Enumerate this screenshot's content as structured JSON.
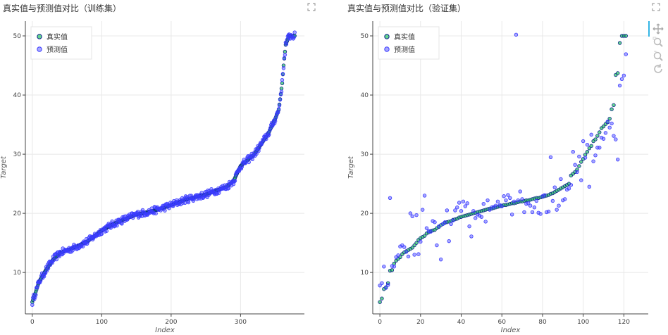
{
  "colors": {
    "actual": "#22c55e",
    "predicted": "#3b3bff",
    "outline": "#0b1f8a",
    "grid": "#e8e8e8",
    "accent": "#33b5e5"
  },
  "icons": {
    "expand": "expand-icon",
    "pan": "pan-icon",
    "box_zoom": "box-zoom-icon",
    "wheel_zoom": "wheel-zoom-icon",
    "reset": "reset-icon"
  },
  "chart_data": [
    {
      "type": "scatter",
      "title": "真实值与预测值对比（训练集）",
      "xlabel": "Index",
      "ylabel": "Target",
      "xlim": [
        -10,
        392
      ],
      "ylim": [
        3,
        52.5
      ],
      "x_ticks": [
        "0",
        "100",
        "200",
        "300"
      ],
      "y_ticks": [
        "10",
        "20",
        "30",
        "40",
        "50"
      ],
      "legend": {
        "position": "top-left",
        "entries": [
          "真实值",
          "预测值"
        ]
      },
      "grid": true,
      "n_points": 379,
      "curve_knots": {
        "x": [
          0,
          10,
          20,
          30,
          40,
          60,
          80,
          100,
          120,
          150,
          180,
          200,
          220,
          250,
          280,
          290,
          300,
          320,
          340,
          350,
          355,
          360,
          362,
          365,
          370,
          375,
          378
        ],
        "y": [
          5,
          8.5,
          10.5,
          12.2,
          13.3,
          14.2,
          15.3,
          17.1,
          18.4,
          19.8,
          20.6,
          21.4,
          22.3,
          23.2,
          24.5,
          25.5,
          28,
          30,
          33.5,
          36,
          37.5,
          42,
          45,
          48.5,
          50,
          50,
          50
        ]
      },
      "series": [
        {
          "name": "真实值",
          "color": "#22c55e"
        },
        {
          "name": "预测值",
          "color": "#3b3bff"
        }
      ]
    },
    {
      "type": "scatter",
      "title": "真实值与预测值对比（验证集）",
      "xlabel": "Index",
      "ylabel": "Target",
      "xlim": [
        -3.5,
        132
      ],
      "ylim": [
        3,
        52.5
      ],
      "x_ticks": [
        "0",
        "20",
        "40",
        "60",
        "80",
        "100",
        "120"
      ],
      "y_ticks": [
        "10",
        "20",
        "30",
        "40",
        "50"
      ],
      "legend": {
        "position": "top-left",
        "entries": [
          "真实值",
          "预测值"
        ]
      },
      "grid": true,
      "series": [
        {
          "name": "真实值",
          "color": "#22c55e",
          "values": [
            5,
            5.6,
            7.2,
            7.5,
            8.2,
            10.3,
            10.4,
            11.5,
            12,
            12.3,
            12.6,
            13.1,
            13.4,
            13.6,
            13.8,
            14,
            14.2,
            14.6,
            15,
            15.5,
            15.8,
            16,
            16.2,
            16.6,
            16.8,
            17,
            17.1,
            17.2,
            17.5,
            17.7,
            18,
            18.2,
            18.4,
            18.5,
            18.6,
            18.7,
            18.9,
            19,
            19.1,
            19.3,
            19.4,
            19.5,
            19.6,
            19.7,
            19.8,
            19.9,
            20,
            20.1,
            20.2,
            20.3,
            20.4,
            20.5,
            20.6,
            20.7,
            20.8,
            20.8,
            20.9,
            21,
            21.1,
            21.2,
            21.3,
            21.4,
            21.4,
            21.5,
            21.6,
            21.7,
            21.7,
            21.8,
            21.9,
            22,
            22,
            22.1,
            22.2,
            22.2,
            22.3,
            22.4,
            22.5,
            22.6,
            22.6,
            22.7,
            22.8,
            22.9,
            23,
            23.1,
            23.3,
            23.4,
            23.6,
            23.8,
            24,
            24.2,
            24.4,
            24.6,
            24.8,
            25,
            26.4,
            26.7,
            27,
            27.4,
            28,
            28.7,
            29.2,
            29.9,
            30.4,
            31,
            31.4,
            32.2,
            32.5,
            33.1,
            33.7,
            34.4,
            34.7,
            35.1,
            35.4,
            36,
            37.6,
            38.3,
            43.4,
            43.7,
            48.8,
            50,
            50,
            50
          ]
        },
        {
          "name": "预测值",
          "color": "#3b3bff",
          "values": [
            7.8,
            8.2,
            11,
            7.4,
            7.9,
            22.6,
            11.1,
            11,
            12.6,
            12.9,
            14.4,
            14.6,
            14.3,
            13.5,
            12.7,
            20,
            19.5,
            13,
            19.7,
            13.1,
            15.2,
            20.6,
            23,
            17.5,
            17,
            16.9,
            18.7,
            18.5,
            14.6,
            17.8,
            12.2,
            18.2,
            18.5,
            20.5,
            15.3,
            18.2,
            18.8,
            20.5,
            21,
            21.8,
            20.4,
            22,
            21.2,
            21.7,
            17.8,
            16.1,
            20.4,
            19.2,
            19.8,
            19.6,
            19.4,
            21.6,
            18.6,
            22.2,
            20.6,
            21,
            21.1,
            21.3,
            22,
            21.4,
            21.2,
            22.9,
            22.2,
            23.1,
            22.6,
            19.8,
            22,
            50.2,
            22.2,
            23.7,
            22.4,
            20.2,
            21.6,
            21.7,
            21.3,
            20.2,
            21,
            22.1,
            20.1,
            19.9,
            22.9,
            23.1,
            20.2,
            20.3,
            29.5,
            22.1,
            24.4,
            20.6,
            21.3,
            25.8,
            22.2,
            22.4,
            24,
            24.2,
            24.8,
            30.4,
            28.2,
            27,
            29.6,
            25.6,
            32.2,
            29.4,
            31.6,
            24.5,
            33.3,
            28.8,
            29.8,
            31.1,
            31.1,
            32.8,
            32.6,
            33.6,
            35.5,
            34.5,
            35.2,
            33.1,
            32.5,
            29.1,
            41.6,
            42.7,
            43.3,
            46.9,
            48.2,
            36.8,
            45
          ]
        }
      ]
    }
  ]
}
